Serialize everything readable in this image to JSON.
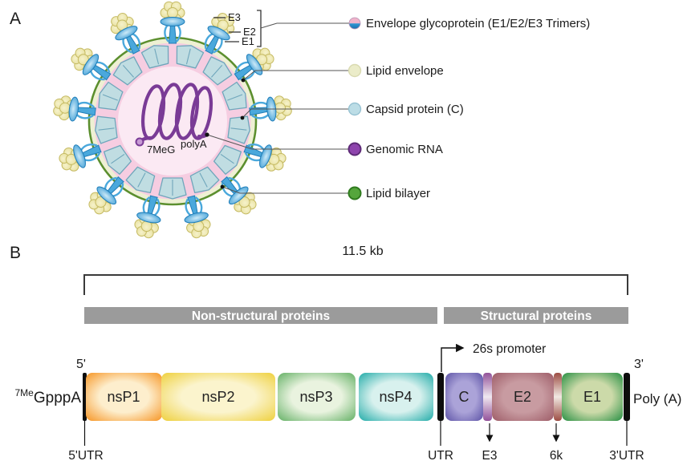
{
  "panelA": {
    "label": "A",
    "callouts": {
      "e3": "E3",
      "e2": "E2",
      "e1": "E1"
    },
    "rna": {
      "cap": "7MeG",
      "polya": "polyA"
    },
    "legend": [
      {
        "label": "Envelope glycoprotein (E1/E2/E3 Trimers)",
        "swatch": "#f0b3ca",
        "swatch2": "#2f96d2"
      },
      {
        "label": "Lipid envelope",
        "swatch": "#ebecc9",
        "ring": "#d9dab0"
      },
      {
        "label": "Capsid protein (C)",
        "swatch": "#bcdde6",
        "ring": "#97c2d2"
      },
      {
        "label": "Genomic RNA",
        "swatch": "#8e44ad",
        "ring": "#5e2b77"
      },
      {
        "label": "Lipid bilayer",
        "swatch": "#55a63c",
        "ring": "#2f7a1e"
      }
    ],
    "colors": {
      "membrane_green": "#5c8f2e",
      "lipid_ring": "#eef0d3",
      "envelope_pink": "#f6cde1",
      "inner_pink": "#fbe9f3",
      "capsid_fill": "#c0dde2",
      "capsid_stroke": "#6fa6bb",
      "rna_purple": "#7a3b96",
      "spike_blue": "#4aa8dc",
      "spike_stroke": "#1f7db8",
      "flower_yellow": "#e9e2a2",
      "flower_stroke": "#c5ba62"
    }
  },
  "panelB": {
    "label": "B",
    "size_label": "11.5 kb",
    "five_prime": "5'",
    "three_prime": "3'",
    "cap_sup": "7Me",
    "cap_text": "GpppA",
    "polya": "Poly (A)",
    "promoter": "26s promoter",
    "bar_color": "#9b9b9b",
    "groups": [
      {
        "label": "Non-structural proteins"
      },
      {
        "label": "Structural proteins"
      }
    ],
    "segments": [
      {
        "label": "nsP1",
        "center": "#fdeecd",
        "edge": "#f6921e"
      },
      {
        "label": "nsP2",
        "center": "#fbf4cd",
        "edge": "#eecf39"
      },
      {
        "label": "nsP3",
        "center": "#e9f3df",
        "edge": "#5fae61"
      },
      {
        "label": "nsP4",
        "center": "#d8f1ee",
        "edge": "#1ba9a6"
      },
      {
        "label": "C",
        "center": "#aba3d8",
        "edge": "#5a50a4"
      },
      {
        "label": "E2",
        "center": "#c89ba1",
        "edge": "#9c5a65"
      },
      {
        "label": "E1",
        "center": "#ccdaa9",
        "edge": "#218c3f"
      }
    ],
    "bands": [
      {
        "name": "E3",
        "center": "#f0e8f0",
        "edge": "#93529a"
      },
      {
        "name": "6k",
        "center": "#f1e9e2",
        "edge": "#9d4d44"
      }
    ],
    "bottom_labels": [
      "5'UTR",
      "UTR",
      "E3",
      "6k",
      "3'UTR"
    ]
  }
}
